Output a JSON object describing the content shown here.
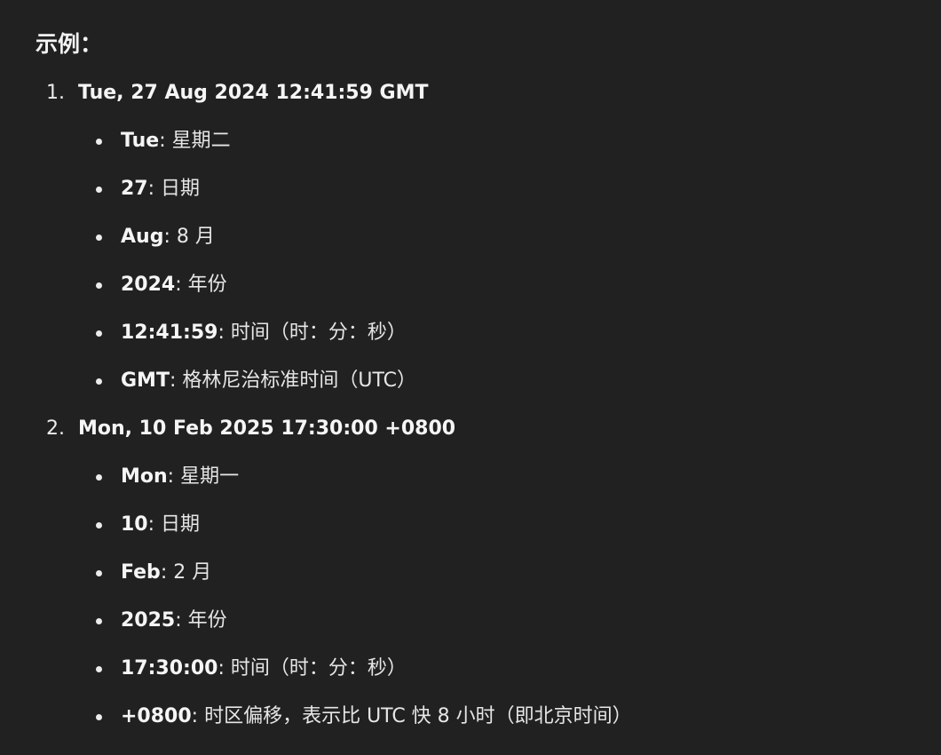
{
  "heading": "示例：",
  "separator": ": ",
  "examples": [
    {
      "number": "1.",
      "title": "Tue, 27 Aug 2024 12:41:59 GMT",
      "parts": [
        {
          "term": "Tue",
          "desc": "星期二"
        },
        {
          "term": "27",
          "desc": "日期"
        },
        {
          "term": "Aug",
          "desc": "8 月"
        },
        {
          "term": "2024",
          "desc": "年份"
        },
        {
          "term": "12:41:59",
          "desc": "时间（时：分：秒）"
        },
        {
          "term": "GMT",
          "desc": "格林尼治标准时间（UTC）"
        }
      ]
    },
    {
      "number": "2.",
      "title": "Mon, 10 Feb 2025 17:30:00 +0800",
      "parts": [
        {
          "term": "Mon",
          "desc": "星期一"
        },
        {
          "term": "10",
          "desc": "日期"
        },
        {
          "term": "Feb",
          "desc": "2 月"
        },
        {
          "term": "2025",
          "desc": "年份"
        },
        {
          "term": "17:30:00",
          "desc": "时间（时：分：秒）"
        },
        {
          "term": "+0800",
          "desc": "时区偏移，表示比 UTC 快 8 小时（即北京时间）"
        }
      ]
    }
  ]
}
